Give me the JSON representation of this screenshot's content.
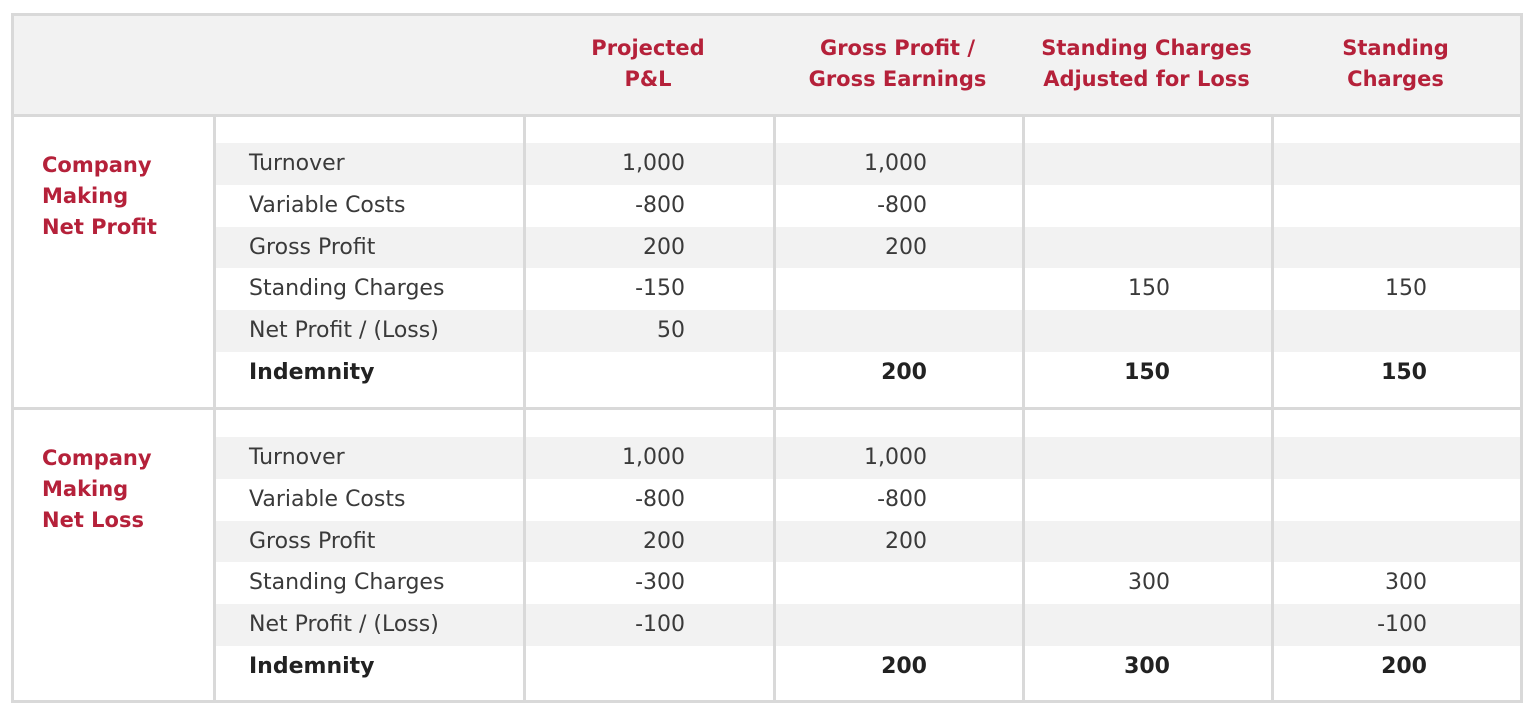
{
  "header": {
    "columns": [
      [
        "Projected",
        "P&L"
      ],
      [
        "Gross Profit /",
        "Gross Earnings"
      ],
      [
        "Standing Charges",
        "Adjusted for Loss"
      ],
      [
        "Standing",
        "Charges"
      ]
    ]
  },
  "sections": [
    {
      "label": [
        "Company",
        "Making",
        "Net Profit"
      ],
      "rows": [
        {
          "label": "Turnover",
          "cells": [
            "1,000",
            "1,000",
            null,
            null
          ]
        },
        {
          "label": "Variable Costs",
          "cells": [
            "-800",
            "-800",
            null,
            null
          ]
        },
        {
          "label": "Gross Profit",
          "cells": [
            "200",
            "200",
            null,
            null
          ]
        },
        {
          "label": "Standing Charges",
          "cells": [
            "-150",
            null,
            "150",
            "150"
          ]
        },
        {
          "label": "Net Profit / (Loss)",
          "cells": [
            "50",
            null,
            null,
            null
          ]
        },
        {
          "label": "Indemnity",
          "cells": [
            null,
            "200",
            "150",
            "150"
          ]
        }
      ]
    },
    {
      "label": [
        "Company",
        "Making",
        "Net Loss"
      ],
      "rows": [
        {
          "label": "Turnover",
          "cells": [
            "1,000",
            "1,000",
            null,
            null
          ]
        },
        {
          "label": "Variable Costs",
          "cells": [
            "-800",
            "-800",
            null,
            null
          ]
        },
        {
          "label": "Gross Profit",
          "cells": [
            "200",
            "200",
            null,
            null
          ]
        },
        {
          "label": "Standing Charges",
          "cells": [
            "-300",
            null,
            "300",
            "300"
          ]
        },
        {
          "label": "Net Profit / (Loss)",
          "cells": [
            "-100",
            null,
            null,
            "-100"
          ]
        },
        {
          "label": "Indemnity",
          "cells": [
            null,
            "200",
            "300",
            "200"
          ]
        }
      ]
    }
  ]
}
